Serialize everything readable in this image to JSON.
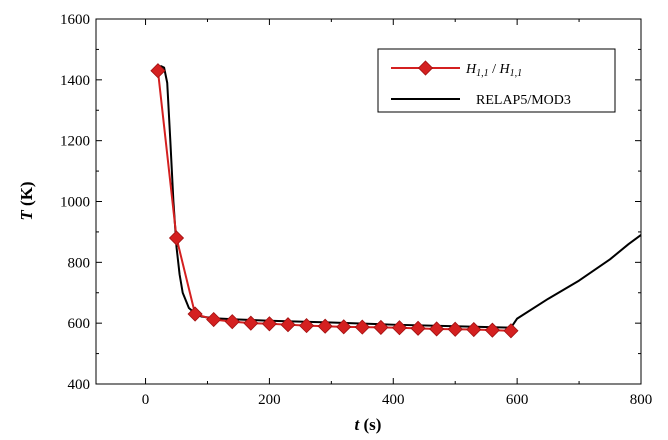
{
  "chart_data": {
    "type": "line",
    "xlabel": {
      "var": "t",
      "unit": " (s)"
    },
    "ylabel": {
      "var": "T",
      "unit": " (K)"
    },
    "xlim": [
      -80,
      800
    ],
    "ylim": [
      400,
      1600
    ],
    "xticks": [
      0,
      200,
      400,
      600,
      800
    ],
    "yticks": [
      400,
      600,
      800,
      1000,
      1200,
      1400,
      1600
    ],
    "grid": false,
    "legend_position": "top-right",
    "series": [
      {
        "name": "H1,1 / H1,1",
        "legend_parts": {
          "a": "H",
          "a_sub": "1,1",
          "sep": " / ",
          "b": "H",
          "b_sub": "1,1"
        },
        "color": "#d42020",
        "marker": "diamond",
        "x": [
          20,
          50,
          80,
          110,
          140,
          170,
          200,
          230,
          260,
          290,
          320,
          350,
          380,
          410,
          440,
          470,
          500,
          530,
          560,
          590
        ],
        "y": [
          1430,
          880,
          630,
          612,
          605,
          600,
          598,
          595,
          592,
          590,
          588,
          587,
          586,
          585,
          583,
          581,
          580,
          579,
          577,
          575
        ]
      },
      {
        "name": "RELAP5/MOD3",
        "color": "#000000",
        "marker": "none",
        "x": [
          20,
          25,
          30,
          35,
          40,
          45,
          50,
          55,
          60,
          70,
          80,
          90,
          110,
          150,
          200,
          300,
          400,
          500,
          590,
          600,
          650,
          700,
          750,
          780,
          800
        ],
        "y": [
          1440,
          1445,
          1440,
          1390,
          1200,
          1000,
          850,
          760,
          700,
          650,
          632,
          622,
          616,
          612,
          608,
          602,
          595,
          590,
          585,
          615,
          680,
          740,
          810,
          860,
          890
        ]
      }
    ]
  }
}
